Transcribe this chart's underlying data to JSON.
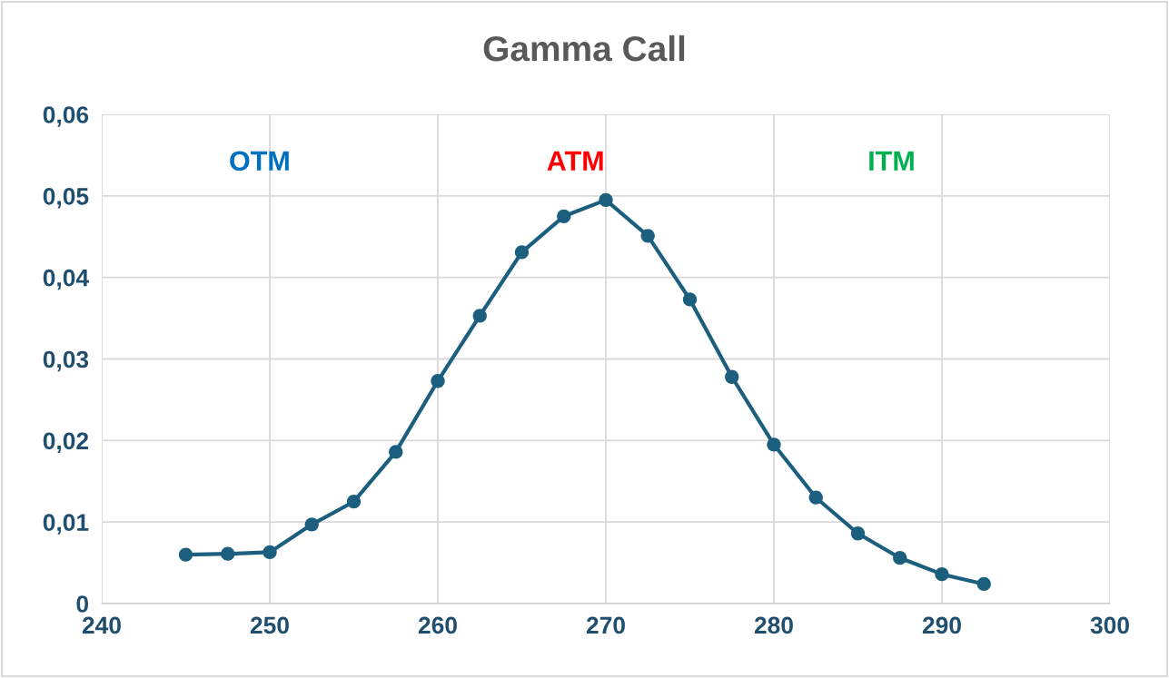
{
  "chart_data": {
    "type": "line",
    "title": "Gamma Call",
    "x": [
      245,
      247.5,
      250,
      252.5,
      255,
      257.5,
      260,
      262.5,
      265,
      267.5,
      270,
      272.5,
      275,
      277.5,
      280,
      282.5,
      285,
      287.5,
      290,
      292.5
    ],
    "series": [
      {
        "color": "#1b5e7e",
        "values": [
          0.006,
          0.0061,
          0.0063,
          0.0097,
          0.0125,
          0.0186,
          0.0273,
          0.0353,
          0.0431,
          0.0475,
          0.0495,
          0.0451,
          0.0373,
          0.0278,
          0.0195,
          0.013,
          0.0086,
          0.0056,
          0.0036,
          0.0024
        ]
      }
    ],
    "xlim": [
      240,
      300
    ],
    "xticks": [
      240,
      250,
      260,
      270,
      280,
      290,
      300
    ],
    "ylim": [
      0,
      0.06
    ],
    "yticks": [
      0,
      {
        "value": 0.01,
        "label": "0,01"
      },
      {
        "value": 0.02,
        "label": "0,02"
      },
      {
        "value": 0.03,
        "label": "0,03"
      },
      {
        "value": 0.04,
        "label": "0,04"
      },
      {
        "value": 0.05,
        "label": "0,05"
      },
      {
        "value": 0.06,
        "label": "0,06"
      }
    ],
    "grid": true,
    "marker": "circle",
    "line_style": "solid",
    "annotations": [
      "OTM",
      "ATM",
      "ITM"
    ]
  }
}
